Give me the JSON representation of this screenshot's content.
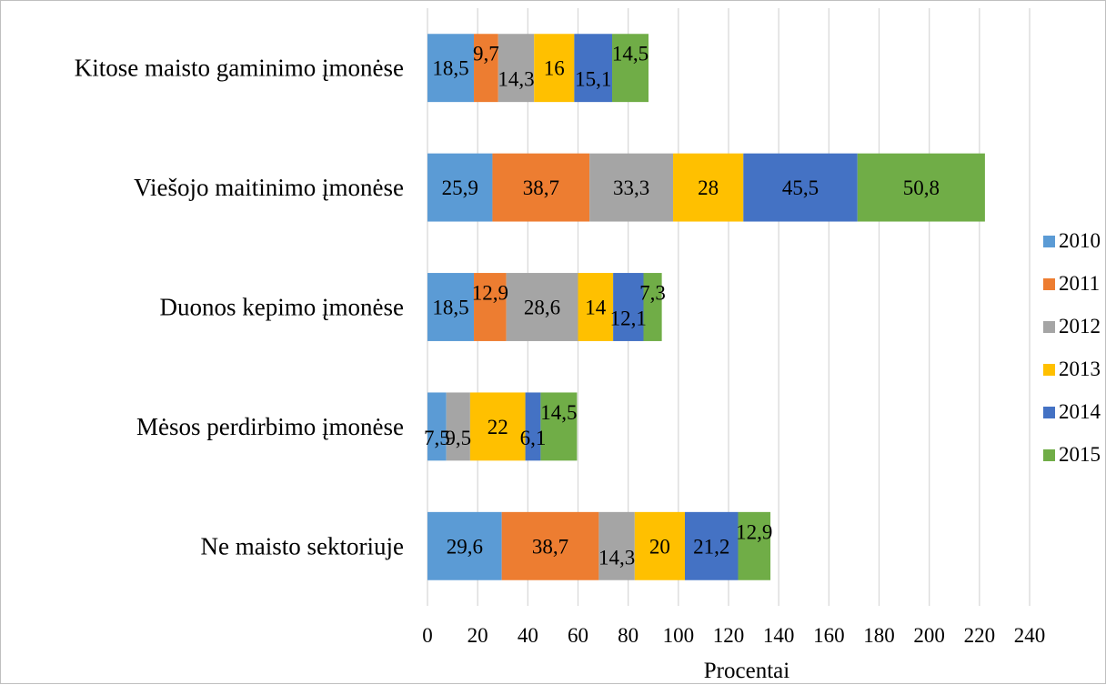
{
  "chart_data": {
    "type": "bar",
    "orientation": "horizontal",
    "stacked": true,
    "xlabel": "Procentai",
    "xlim": [
      0,
      240
    ],
    "xticks": [
      0,
      20,
      40,
      60,
      80,
      100,
      120,
      140,
      160,
      180,
      200,
      220,
      240
    ],
    "grid": true,
    "legend_position": "right",
    "categories": [
      "Kitose maisto gaminimo įmonėse",
      "Viešojo maitinimo įmonėse",
      "Duonos kepimo įmonėse",
      "Mėsos perdirbimo įmonėse",
      "Ne maisto sektoriuje"
    ],
    "series": [
      {
        "name": "2010",
        "color": "#5b9bd5",
        "values": [
          18.5,
          25.9,
          18.5,
          7.5,
          29.6
        ],
        "labels": [
          "18,5",
          "25,9",
          "18,5",
          "7,5",
          "29,6"
        ]
      },
      {
        "name": "2011",
        "color": "#ed7d31",
        "values": [
          9.7,
          38.7,
          12.9,
          0,
          38.7
        ],
        "labels": [
          "9,7",
          "38,7",
          "12,9",
          "",
          "38,7"
        ]
      },
      {
        "name": "2012",
        "color": "#a5a5a5",
        "values": [
          14.3,
          33.3,
          28.6,
          9.5,
          14.3
        ],
        "labels": [
          "14,3",
          "33,3",
          "28,6",
          "9,5",
          "14,3"
        ]
      },
      {
        "name": "2013",
        "color": "#ffc000",
        "values": [
          16,
          28,
          14,
          22,
          20
        ],
        "labels": [
          "16",
          "28",
          "14",
          "22",
          "20"
        ]
      },
      {
        "name": "2014",
        "color": "#4472c4",
        "values": [
          15.1,
          45.5,
          12.1,
          6.1,
          21.2
        ],
        "labels": [
          "15,1",
          "45,5",
          "12,1",
          "6,1",
          "21,2"
        ]
      },
      {
        "name": "2015",
        "color": "#70ad47",
        "values": [
          14.5,
          50.8,
          7.3,
          14.5,
          12.9
        ],
        "labels": [
          "14,5",
          "50,8",
          "7,3",
          "14,5",
          "12,9"
        ]
      }
    ]
  }
}
